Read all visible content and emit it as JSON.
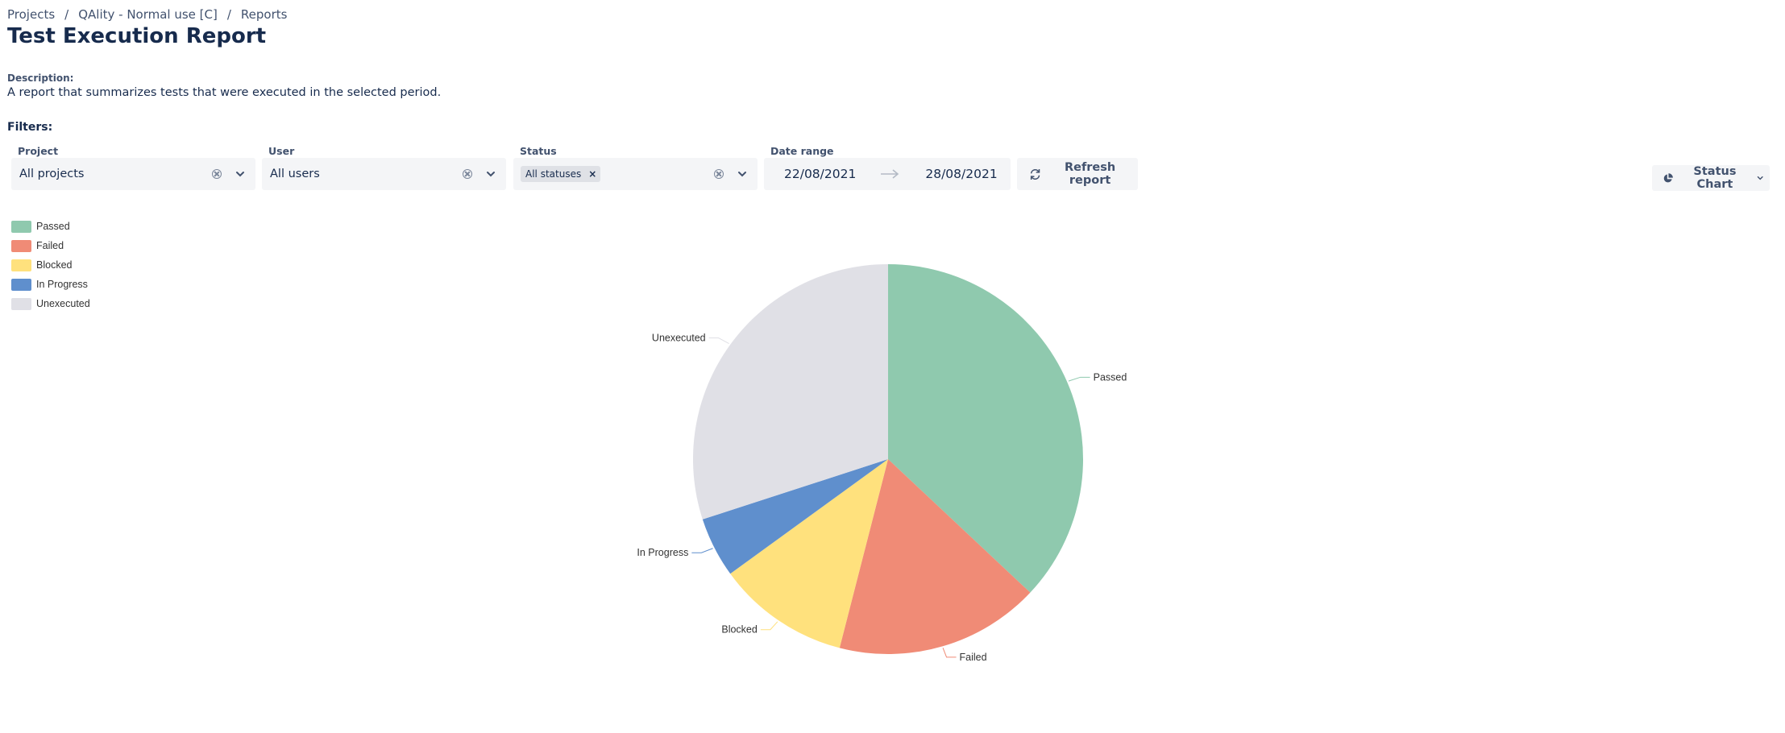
{
  "breadcrumb": {
    "items": [
      "Projects",
      "QAlity - Normal use [C]",
      "Reports"
    ],
    "separator": "/"
  },
  "page_title": "Test Execution Report",
  "description": {
    "label": "Description:",
    "text": "A report that summarizes tests that were executed in the selected period."
  },
  "filters": {
    "label": "Filters:",
    "project": {
      "label": "Project",
      "value": "All projects"
    },
    "user": {
      "label": "User",
      "value": "All users"
    },
    "status": {
      "label": "Status",
      "tag": "All statuses",
      "tag_remove": "×"
    },
    "date_range": {
      "label": "Date range",
      "start": "22/08/2021",
      "end": "28/08/2021"
    },
    "refresh_label": "Refresh report"
  },
  "chart_type_button": {
    "label": "Status Chart"
  },
  "icons": [
    "breadcrumb-separator",
    "clear-icon",
    "chevron-down-icon",
    "tag-remove-icon",
    "arrow-right-icon",
    "refresh-icon",
    "pie-chart-icon"
  ],
  "chart_data": {
    "type": "pie",
    "legend_position": "top-left",
    "categories": [
      "Passed",
      "Failed",
      "Blocked",
      "In Progress",
      "Unexecuted"
    ],
    "values": [
      37,
      17,
      11,
      5,
      30
    ],
    "value_unit": "approximate percent of tests",
    "colors": [
      "#8fc9ae",
      "#f08b76",
      "#ffe17d",
      "#5f8fcd",
      "#e0e0e6"
    ]
  }
}
